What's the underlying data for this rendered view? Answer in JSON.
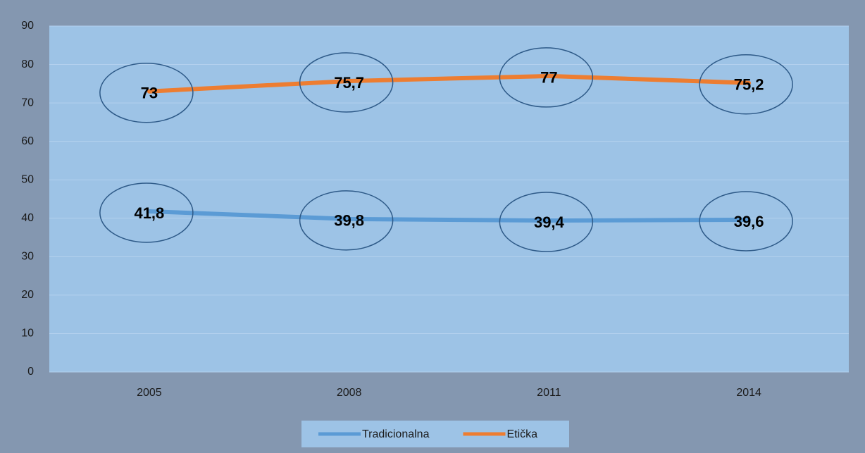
{
  "chart_data": {
    "type": "line",
    "categories": [
      "2005",
      "2008",
      "2011",
      "2014"
    ],
    "series": [
      {
        "name": "Tradicionalna",
        "color": "#5b9bd5",
        "values": [
          41.8,
          39.8,
          39.4,
          39.6
        ],
        "value_labels": [
          "41,8",
          "39,8",
          "39,4",
          "39,6"
        ]
      },
      {
        "name": "Etička",
        "color": "#ed7d31",
        "values": [
          73,
          75.7,
          77,
          75.2
        ],
        "value_labels": [
          "73",
          "75,7",
          "77",
          "75,2"
        ]
      }
    ],
    "ylim": [
      0,
      90
    ],
    "yticks": [
      0,
      10,
      20,
      30,
      40,
      50,
      60,
      70,
      80,
      90
    ],
    "grid": true
  }
}
